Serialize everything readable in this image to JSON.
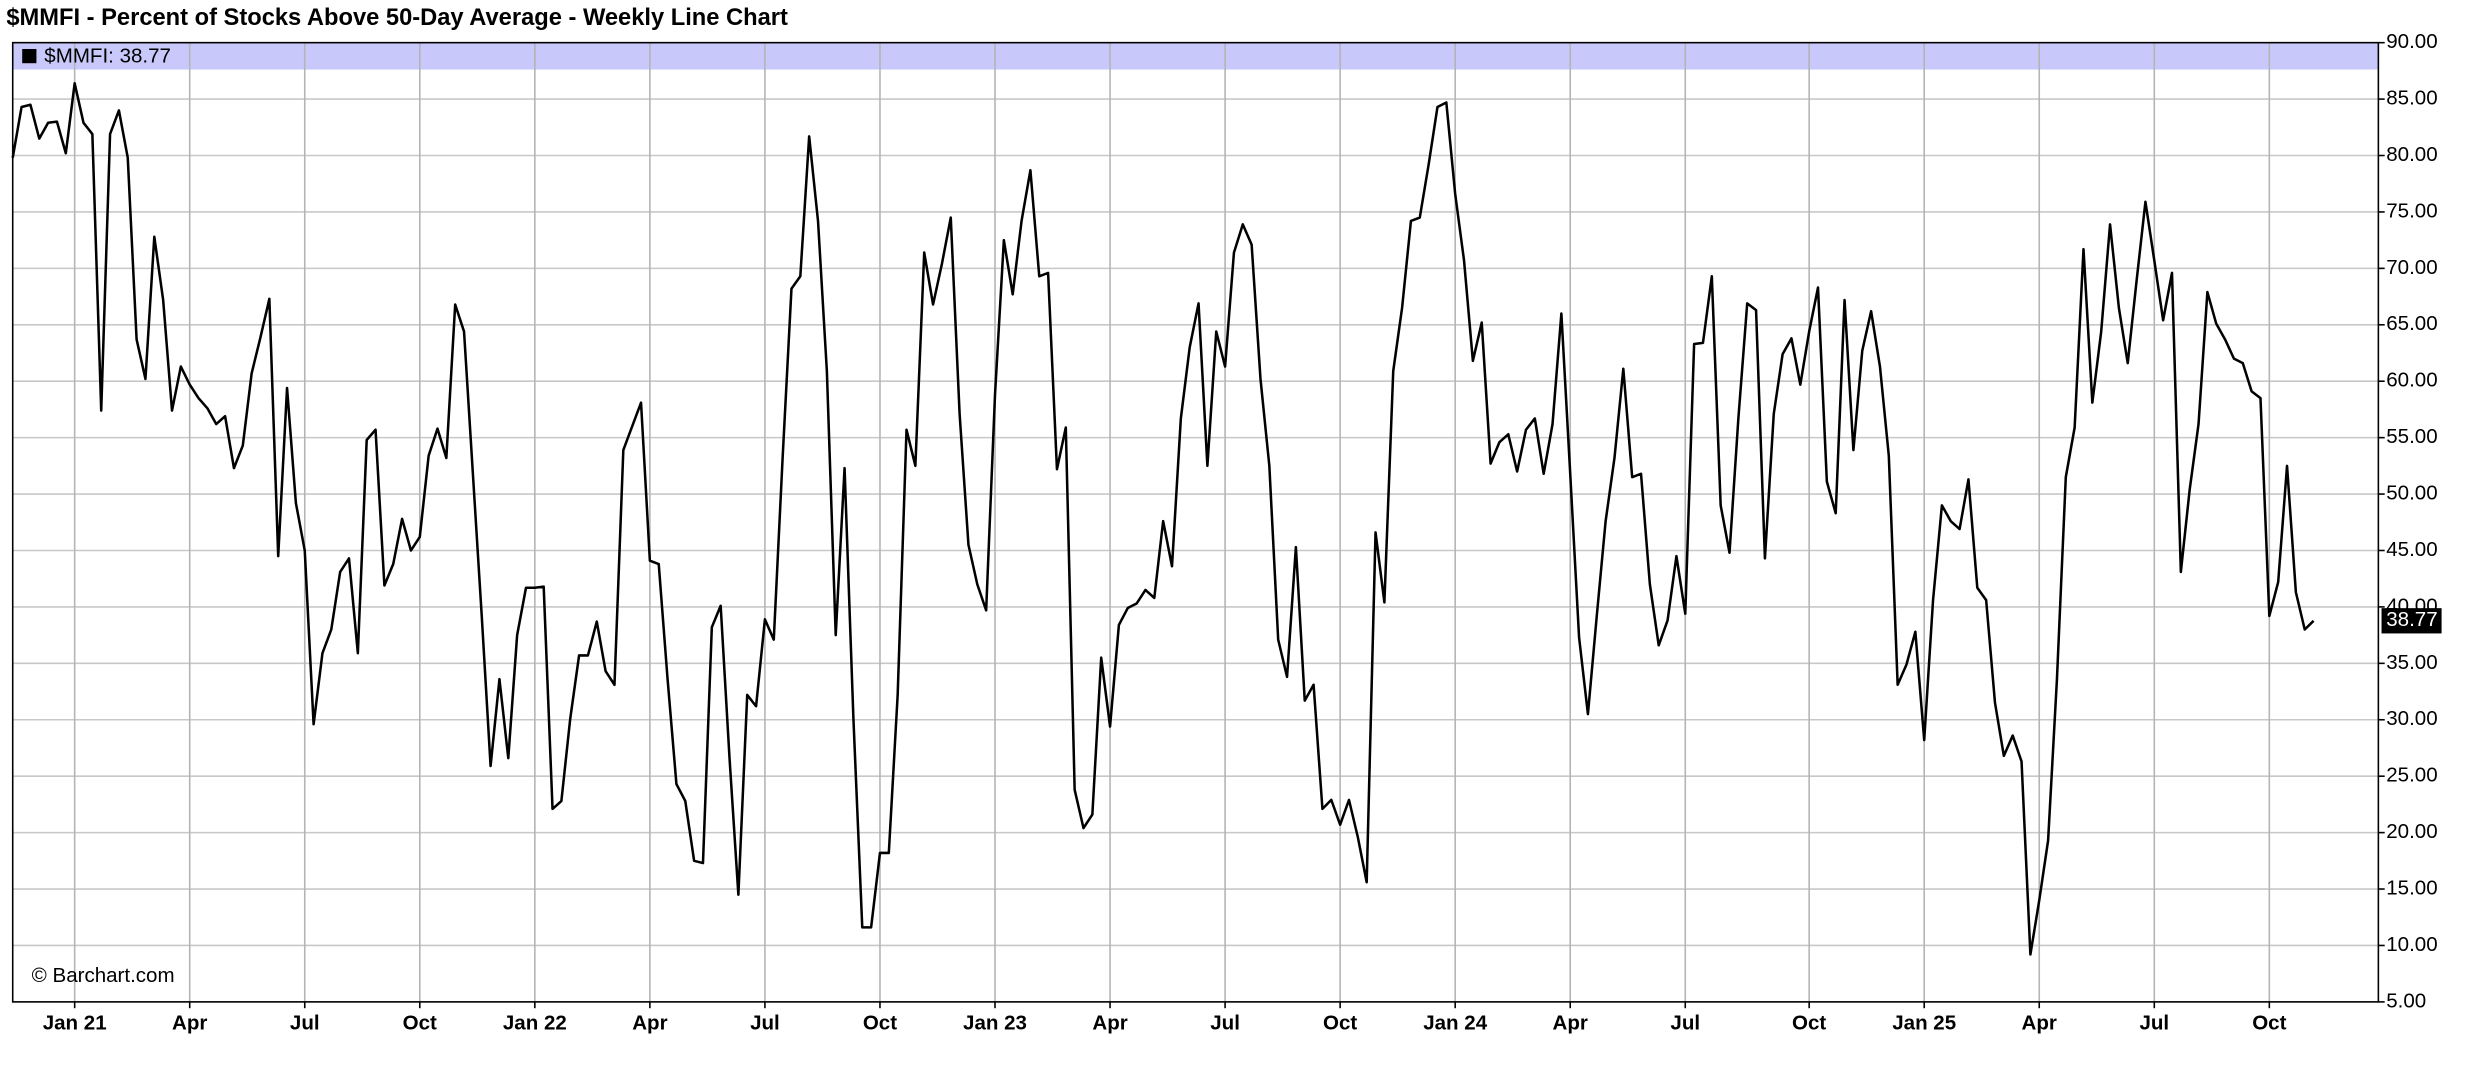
{
  "chart_data": {
    "type": "line",
    "title": "$MMFI - Percent of Stocks Above 50-Day Average - Weekly Line Chart",
    "legend_label": "$MMFI: 38.77",
    "credit": "© Barchart.com",
    "categories": [
      null,
      null,
      null,
      null,
      null,
      null,
      null,
      "Jan 21",
      null,
      null,
      null,
      null,
      null,
      null,
      null,
      null,
      null,
      null,
      null,
      null,
      "Apr",
      null,
      null,
      null,
      null,
      null,
      null,
      null,
      null,
      null,
      null,
      null,
      null,
      "Jul",
      null,
      null,
      null,
      null,
      null,
      null,
      null,
      null,
      null,
      null,
      null,
      null,
      "Oct",
      null,
      null,
      null,
      null,
      null,
      null,
      null,
      null,
      null,
      null,
      null,
      null,
      "Jan 22",
      null,
      null,
      null,
      null,
      null,
      null,
      null,
      null,
      null,
      null,
      null,
      null,
      "Apr",
      null,
      null,
      null,
      null,
      null,
      null,
      null,
      null,
      null,
      null,
      null,
      null,
      "Jul",
      null,
      null,
      null,
      null,
      null,
      null,
      null,
      null,
      null,
      null,
      null,
      null,
      "Oct",
      null,
      null,
      null,
      null,
      null,
      null,
      null,
      null,
      null,
      null,
      null,
      null,
      "Jan 23",
      null,
      null,
      null,
      null,
      null,
      null,
      null,
      null,
      null,
      null,
      null,
      null,
      "Apr",
      null,
      null,
      null,
      null,
      null,
      null,
      null,
      null,
      null,
      null,
      null,
      null,
      "Jul",
      null,
      null,
      null,
      null,
      null,
      null,
      null,
      null,
      null,
      null,
      null,
      null,
      "Oct",
      null,
      null,
      null,
      null,
      null,
      null,
      null,
      null,
      null,
      null,
      null,
      null,
      "Jan 24",
      null,
      null,
      null,
      null,
      null,
      null,
      null,
      null,
      null,
      null,
      null,
      null,
      "Apr",
      null,
      null,
      null,
      null,
      null,
      null,
      null,
      null,
      null,
      null,
      null,
      null,
      "Jul",
      null,
      null,
      null,
      null,
      null,
      null,
      null,
      null,
      null,
      null,
      null,
      null,
      null,
      "Oct",
      null,
      null,
      null,
      null,
      null,
      null,
      null,
      null,
      null,
      null,
      null,
      null,
      "Jan 25",
      null,
      null,
      null,
      null,
      null,
      null,
      null,
      null,
      null,
      null,
      null,
      null,
      "Apr",
      null,
      null,
      null,
      null,
      null,
      null,
      null,
      null,
      null,
      null,
      null,
      null,
      "Jul",
      null,
      null,
      null,
      null,
      null,
      null,
      null,
      null,
      null,
      null,
      null,
      null,
      "Oct",
      null,
      null,
      null,
      null,
      null
    ],
    "series": [
      {
        "name": "$MMFI",
        "color": "#000000",
        "values": [
          79.8,
          84.3,
          84.5,
          81.5,
          82.9,
          83,
          80.2,
          86.4,
          82.9,
          81.9,
          57.4,
          81.9,
          84,
          79.8,
          63.7,
          60.2,
          72.8,
          67.2,
          57.4,
          61.3,
          59.7,
          58.5,
          57.6,
          56.2,
          56.9,
          52.3,
          54.3,
          60.7,
          63.9,
          67.3,
          44.5,
          59.4,
          49.2,
          45,
          29.6,
          35.9,
          38,
          43.1,
          44.3,
          35.9,
          54.8,
          55.7,
          41.9,
          43.8,
          47.8,
          45,
          46.2,
          53.4,
          55.8,
          53.2,
          66.8,
          64.4,
          51.8,
          39.2,
          25.9,
          33.6,
          26.6,
          37.5,
          41.7,
          41.7,
          41.8,
          22.1,
          22.8,
          30.1,
          35.7,
          35.7,
          38.7,
          34.3,
          33.1,
          53.9,
          56,
          58.1,
          44.1,
          43.8,
          33.6,
          24.3,
          22.8,
          17.5,
          17.3,
          38.2,
          40.1,
          26.6,
          14.5,
          32.2,
          31.2,
          38.9,
          37.1,
          53.2,
          68.2,
          69.3,
          81.7,
          74.2,
          60.9,
          37.5,
          52.3,
          30.1,
          11.6,
          11.6,
          18.2,
          18.2,
          32.2,
          55.7,
          52.5,
          71.4,
          66.8,
          70.4,
          74.5,
          57.1,
          45.5,
          42,
          39.7,
          58.8,
          72.5,
          67.7,
          74.2,
          78.7,
          69.3,
          69.6,
          52.2,
          55.9,
          23.8,
          20.4,
          21.6,
          35.5,
          29.4,
          38.4,
          39.9,
          40.3,
          41.5,
          40.8,
          47.6,
          43.6,
          56.7,
          63,
          66.9,
          52.5,
          64.4,
          61.3,
          71.4,
          73.9,
          72.1,
          60.2,
          52.5,
          37.1,
          33.8,
          45.3,
          31.7,
          33.1,
          22.1,
          22.9,
          20.7,
          22.9,
          19.6,
          15.6,
          46.6,
          40.4,
          60.9,
          66.5,
          74.2,
          74.5,
          79.2,
          84.3,
          84.7,
          76.6,
          70.7,
          61.8,
          65.2,
          52.7,
          54.6,
          55.3,
          52,
          55.7,
          56.7,
          51.8,
          56.2,
          66,
          51.8,
          37.3,
          30.5,
          39.2,
          47.6,
          53.2,
          61.1,
          51.5,
          51.8,
          42,
          36.6,
          38.8,
          44.5,
          39.4,
          63.3,
          63.4,
          69.3,
          49,
          44.8,
          56.7,
          66.9,
          66.3,
          44.3,
          57.1,
          62.4,
          63.8,
          59.7,
          64.4,
          68.3,
          51.1,
          48.3,
          67.2,
          53.9,
          62.7,
          66.2,
          61.3,
          53.4,
          33.1,
          34.9,
          37.8,
          28.2,
          40.6,
          49,
          47.6,
          46.9,
          51.3,
          41.7,
          40.6,
          31.5,
          26.8,
          28.6,
          26.3,
          9.2,
          14,
          19.3,
          33.6,
          51.5,
          55.9,
          71.7,
          58.1,
          64.4,
          73.9,
          66.5,
          61.6,
          68.9,
          75.9,
          70.7,
          65.4,
          69.6,
          43.1,
          50.4,
          56.2,
          67.9,
          65.1,
          63.7,
          62,
          61.6,
          59.1,
          58.5,
          39.2,
          42.2,
          52.5,
          41.3,
          38,
          38.77
        ]
      }
    ],
    "ylim": [
      5,
      90
    ],
    "yticks": [
      {
        "value": 5,
        "label": "5.00"
      },
      {
        "value": 10,
        "label": "10.00"
      },
      {
        "value": 15,
        "label": "15.00"
      },
      {
        "value": 20,
        "label": "20.00"
      },
      {
        "value": 25,
        "label": "25.00"
      },
      {
        "value": 30,
        "label": "30.00"
      },
      {
        "value": 35,
        "label": "35.00"
      },
      {
        "value": 40,
        "label": "40.00"
      },
      {
        "value": 45,
        "label": "45.00"
      },
      {
        "value": 50,
        "label": "50.00"
      },
      {
        "value": 55,
        "label": "55.00"
      },
      {
        "value": 60,
        "label": "60.00"
      },
      {
        "value": 65,
        "label": "65.00"
      },
      {
        "value": 70,
        "label": "70.00"
      },
      {
        "value": 75,
        "label": "75.00"
      },
      {
        "value": 80,
        "label": "80.00"
      },
      {
        "value": 85,
        "label": "85.00"
      },
      {
        "value": 90,
        "label": "90.00"
      }
    ],
    "grid": true,
    "legend_color": "#c8c8fa"
  }
}
